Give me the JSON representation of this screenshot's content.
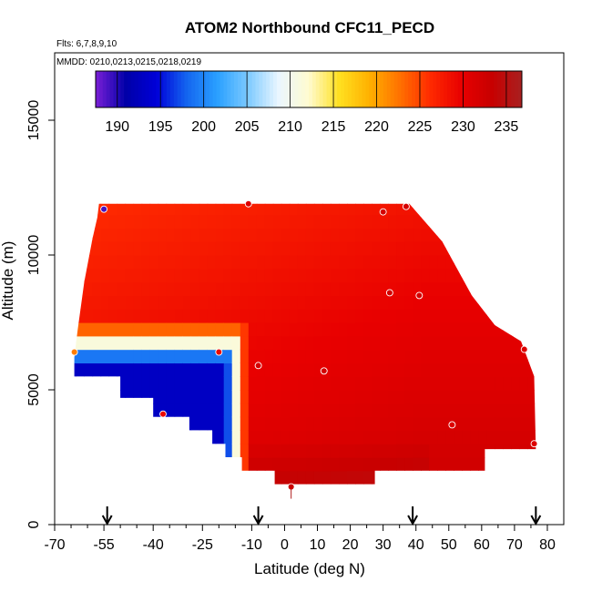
{
  "chart_data": {
    "type": "heatmap",
    "title": "ATOM2 Northbound CFC11_PECD",
    "flights_label": "Flts: 6,7,8,9,10",
    "mmdd_label": "MMDD: 0210,0213,0215,0218,0219",
    "xlabel": "Latitude (deg N)",
    "ylabel": "Altitude (m)",
    "xlim": [
      -70,
      85
    ],
    "ylim": [
      0,
      17500
    ],
    "xticks": [
      -70,
      -55,
      -40,
      -25,
      -10,
      0,
      10,
      20,
      30,
      40,
      50,
      60,
      70,
      80
    ],
    "xtick_labels": [
      "-70",
      "-55",
      "-40",
      "-25",
      "-10",
      "0",
      "10",
      "20",
      "30",
      "40",
      "50",
      "60",
      "70",
      "80"
    ],
    "yticks": [
      0,
      5000,
      10000,
      15000
    ],
    "ytick_labels": [
      "0",
      "5000",
      "10000",
      "15000"
    ],
    "colorbar": {
      "min": 187.5,
      "max": 236.8,
      "ticks": [
        190,
        195,
        200,
        205,
        210,
        215,
        220,
        225,
        230,
        235
      ],
      "tick_labels": [
        "190",
        "195",
        "200",
        "205",
        "210",
        "215",
        "220",
        "225",
        "230",
        "235"
      ],
      "colors": [
        "#7a1fd6",
        "#0000a8",
        "#0000d8",
        "#1466f0",
        "#2aa0ff",
        "#7ccaff",
        "#eaf6ff",
        "#fffbd0",
        "#ffe020",
        "#ffb000",
        "#ff7000",
        "#ff2a00",
        "#e80000",
        "#c80000",
        "#a82020"
      ]
    },
    "domain": {
      "top_altitude": 11900,
      "top_lat_range": [
        -56.5,
        38
      ],
      "bottom_altitude": 1500,
      "bottom_lat_range": [
        -3,
        27.5
      ],
      "outline": [
        [
          -56.5,
          11900
        ],
        [
          38,
          11900
        ],
        [
          48,
          10500
        ],
        [
          57,
          8500
        ],
        [
          64,
          7400
        ],
        [
          72,
          6800
        ],
        [
          76,
          5500
        ],
        [
          76.5,
          2800
        ],
        [
          61,
          2800
        ],
        [
          61,
          2000
        ],
        [
          27.5,
          2000
        ],
        [
          27.5,
          1500
        ],
        [
          -3,
          1500
        ],
        [
          -3,
          2000
        ],
        [
          -13,
          2000
        ],
        [
          -13,
          2500
        ],
        [
          -18,
          2500
        ],
        [
          -18,
          3000
        ],
        [
          -22,
          3000
        ],
        [
          -22,
          3500
        ],
        [
          -29,
          3500
        ],
        [
          -29,
          4000
        ],
        [
          -40,
          4000
        ],
        [
          -40,
          4700
        ],
        [
          -50,
          4700
        ],
        [
          -50,
          5500
        ],
        [
          -64,
          5500
        ],
        [
          -64,
          6200
        ],
        [
          -63,
          7200
        ],
        [
          -61,
          9000
        ],
        [
          -58.5,
          10600
        ],
        [
          -57,
          11400
        ]
      ]
    },
    "observations": [
      {
        "lat": -55,
        "alt": 11700,
        "value": 189
      },
      {
        "lat": -11,
        "alt": 11900,
        "value": 231
      },
      {
        "lat": 30,
        "alt": 11600,
        "value": 232
      },
      {
        "lat": 37,
        "alt": 11800,
        "value": 232
      },
      {
        "lat": 32,
        "alt": 8600,
        "value": 232
      },
      {
        "lat": 41,
        "alt": 8500,
        "value": 232
      },
      {
        "lat": -20,
        "alt": 6400,
        "value": 229
      },
      {
        "lat": -8,
        "alt": 5900,
        "value": 232
      },
      {
        "lat": 12,
        "alt": 5700,
        "value": 232
      },
      {
        "lat": 73,
        "alt": 6500,
        "value": 231
      },
      {
        "lat": -64,
        "alt": 6400,
        "value": 222
      },
      {
        "lat": -37,
        "alt": 4100,
        "value": 229
      },
      {
        "lat": 51,
        "alt": 3700,
        "value": 231
      },
      {
        "lat": 76,
        "alt": 3000,
        "value": 231
      },
      {
        "lat": 2,
        "alt": 1400,
        "value": 233
      }
    ],
    "arrow_latitudes": [
      -54,
      -8,
      39,
      76.5
    ]
  }
}
